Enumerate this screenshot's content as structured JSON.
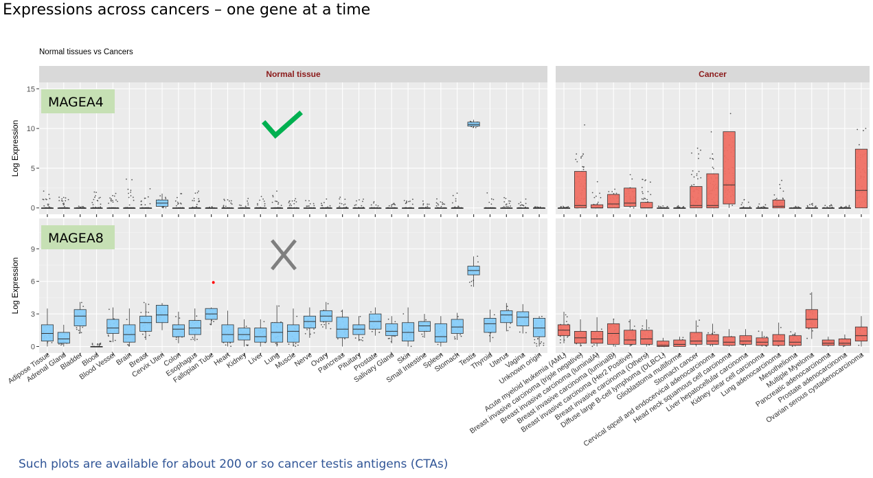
{
  "slide": {
    "title": "Expressions across cancers – one gene at a time",
    "footer": "Such plots are available for about 200 or so cancer testis antigens (CTAs)"
  },
  "colors": {
    "normal_fill": "#87CEFA",
    "cancer_fill": "#F07064",
    "strip_bg": "#D9D9D9",
    "strip_text": "#8B1A1A",
    "panel_bg": "#EBEBEB",
    "gene_label_bg": "#C6E0B4",
    "check": "#00B050",
    "cross": "#7F7F7F",
    "outlier_dot": "#FF0000"
  },
  "annotations": {
    "check_icon": "check-mark-icon",
    "cross_icon": "cross-mark-icon"
  },
  "chart_data": {
    "type": "box",
    "subtitle": "Normal tissues vs Cancers",
    "ylabel": "Log Expression",
    "facets": [
      "Normal tissue",
      "Cancer"
    ],
    "rows": [
      {
        "gene": "MAGEA4",
        "ylim": [
          -0.8,
          15.8
        ],
        "yticks": [
          0,
          5,
          10,
          15
        ],
        "verdict": "check"
      },
      {
        "gene": "MAGEA8",
        "ylim": [
          -0.6,
          11.8
        ],
        "yticks": [
          0,
          3,
          6,
          9
        ],
        "verdict": "cross"
      }
    ],
    "normal_categories": [
      "Adipose Tissue",
      "Adrenal Gland",
      "Bladder",
      "Blood",
      "Blood Vessel",
      "Brain",
      "Breast",
      "Cervix Uteri",
      "Colon",
      "Esophagus",
      "Fallopian Tube",
      "Heart",
      "Kidney",
      "Liver",
      "Lung",
      "Muscle",
      "Nerve",
      "Ovary",
      "Pancreas",
      "Pituitary",
      "Prostate",
      "Salivary Gland",
      "Skin",
      "Small Intestine",
      "Spleen",
      "Stomach",
      "Testis",
      "Thyroid",
      "Uterus",
      "Vagina",
      "Unknown origin"
    ],
    "cancer_categories": [
      "Acute myeloid leukemia (AML)",
      "Breast invasive carcinoma (triple negative)",
      "Breast invasive carcinoma (luminalA)",
      "Breast invasive carcinoma (luminalB)",
      "Breast invasive carcinoma (Her2 Positive)",
      "Breast invasive carcinoma (Others)",
      "Diffuse large B-cell lymphoma (DLBCL)",
      "Glioblastoma multiforme",
      "Stomach cancer",
      "Cervical sqcell and endocervical adenocarcinoma",
      "Head neck squamous cell carcinoma",
      "Liver hepatocellular carcinoma",
      "Kidney clear cell carcinoma",
      "Lung adenocarcinoma",
      "Mesothelioma",
      "Multiple Myeloma",
      "Pancreatic adenocarcinoma",
      "Prostate adenocarcinoma",
      "Ovarian serous cystadenocarcinoma"
    ],
    "MAGEA4": {
      "normal": [
        [
          0,
          0,
          0,
          0,
          0,
          2.5
        ],
        [
          0,
          0,
          0,
          0,
          0,
          2.2
        ],
        [
          0,
          0,
          0,
          0,
          0,
          0.5
        ],
        [
          0,
          0,
          0,
          0,
          0,
          2.5
        ],
        [
          0,
          0,
          0,
          0,
          0,
          2.3
        ],
        [
          0,
          0,
          0,
          0,
          0,
          4.5
        ],
        [
          0,
          0,
          0,
          0,
          0,
          2.5
        ],
        [
          0,
          0.2,
          0.6,
          1.0,
          1.8,
          2.0
        ],
        [
          0,
          0,
          0,
          0,
          0,
          2.0
        ],
        [
          0,
          0,
          0,
          0,
          0,
          2.5
        ],
        [
          0,
          0,
          0,
          0,
          0,
          0.3
        ],
        [
          0,
          0,
          0,
          0,
          0,
          2.0
        ],
        [
          0,
          0,
          0,
          0,
          0,
          1.5
        ],
        [
          0,
          0,
          0,
          0,
          0,
          1.5
        ],
        [
          0,
          0,
          0,
          0,
          0,
          2.5
        ],
        [
          0,
          0,
          0,
          0,
          0,
          2.0
        ],
        [
          0,
          0,
          0,
          0,
          0,
          1.0
        ],
        [
          0,
          0,
          0,
          0,
          0,
          1.5
        ],
        [
          0,
          0,
          0,
          0,
          0,
          2.0
        ],
        [
          0,
          0,
          0,
          0,
          0,
          1.5
        ],
        [
          0,
          0,
          0,
          0,
          0,
          1.5
        ],
        [
          0,
          0,
          0,
          0,
          0,
          1.0
        ],
        [
          0,
          0,
          0,
          0,
          0,
          2.0
        ],
        [
          0,
          0,
          0,
          0,
          0,
          1.5
        ],
        [
          0,
          0,
          0,
          0,
          0,
          1.2
        ],
        [
          0,
          0,
          0,
          0,
          0,
          2.0
        ],
        [
          10.1,
          10.3,
          10.5,
          10.8,
          11.1,
          11.4
        ],
        [
          0,
          0,
          0,
          0,
          0,
          2.0
        ],
        [
          0,
          0,
          0,
          0,
          0,
          1.5
        ],
        [
          0,
          0,
          0,
          0,
          0,
          1.2
        ],
        [
          0,
          0,
          0,
          0,
          0,
          0.2
        ]
      ],
      "cancer": [
        [
          0,
          0,
          0,
          0,
          0,
          0.3
        ],
        [
          0,
          0,
          0.3,
          4.6,
          4.6,
          11.5
        ],
        [
          0,
          0,
          0,
          0.4,
          0.4,
          4.0
        ],
        [
          0,
          0,
          0.5,
          1.7,
          1.7,
          3.5
        ],
        [
          0,
          0.2,
          0.6,
          2.5,
          2.5,
          4.3
        ],
        [
          0,
          0,
          0,
          0.7,
          0.7,
          4.0
        ],
        [
          0,
          0,
          0,
          0,
          0,
          0.3
        ],
        [
          0,
          0,
          0,
          0,
          0,
          0.3
        ],
        [
          0,
          0,
          0.3,
          2.7,
          2.7,
          8.0
        ],
        [
          0,
          0,
          0.3,
          4.3,
          4.3,
          10.5
        ],
        [
          0,
          0.5,
          2.9,
          9.6,
          9.6,
          14.0
        ],
        [
          0,
          0,
          0,
          0,
          0,
          2.0
        ],
        [
          0,
          0,
          0,
          0,
          0,
          0.5
        ],
        [
          0,
          0,
          0.2,
          1.0,
          1.0,
          4.0
        ],
        [
          0,
          0,
          0,
          0,
          0,
          0.3
        ],
        [
          0,
          0,
          0,
          0,
          0,
          0.8
        ],
        [
          0,
          0,
          0,
          0,
          0,
          0.5
        ],
        [
          0,
          0,
          0,
          0,
          0,
          0.5
        ],
        [
          0,
          0,
          2.2,
          7.4,
          7.4,
          12.0
        ]
      ]
    },
    "MAGEA8": {
      "normal": [
        [
          0,
          0.5,
          1.2,
          2.0,
          3.5,
          3.6
        ],
        [
          0,
          0.3,
          0.7,
          1.3,
          2.0,
          2.2
        ],
        [
          1.2,
          1.9,
          2.8,
          3.4,
          4.1,
          4.2
        ],
        [
          0,
          0,
          0,
          0,
          0,
          0.5
        ],
        [
          0.4,
          1.2,
          1.7,
          2.5,
          3.6,
          3.7
        ],
        [
          0,
          0.4,
          1.1,
          2.0,
          3.5,
          3.6
        ],
        [
          0.6,
          1.4,
          2.2,
          2.8,
          4.0,
          4.1
        ],
        [
          1.5,
          2.2,
          2.9,
          3.8,
          4.0,
          4.1
        ],
        [
          0.3,
          0.9,
          1.6,
          2.0,
          3.2,
          3.3
        ],
        [
          0.5,
          1.1,
          1.7,
          2.4,
          3.5,
          3.6
        ],
        [
          2.0,
          2.5,
          3.0,
          3.5,
          3.6,
          3.7
        ],
        [
          0,
          0.4,
          1.1,
          2.0,
          3.3,
          3.4
        ],
        [
          0,
          0.6,
          1.1,
          1.7,
          2.5,
          2.6
        ],
        [
          0,
          0.4,
          0.9,
          1.7,
          2.5,
          2.6
        ],
        [
          0,
          0.4,
          1.3,
          2.2,
          3.8,
          3.9
        ],
        [
          0,
          0.4,
          1.4,
          2.0,
          3.5,
          3.6
        ],
        [
          0.8,
          1.7,
          2.3,
          2.8,
          3.6,
          3.7
        ],
        [
          1.6,
          2.3,
          2.8,
          3.3,
          4.1,
          4.2
        ],
        [
          0,
          0.8,
          1.6,
          2.7,
          3.4,
          3.5
        ],
        [
          0.5,
          1.1,
          1.6,
          2.0,
          2.8,
          2.9
        ],
        [
          1.0,
          1.6,
          2.3,
          3.0,
          3.6,
          3.7
        ],
        [
          0.3,
          1.0,
          1.4,
          2.1,
          2.8,
          2.9
        ],
        [
          0,
          0.5,
          1.3,
          2.2,
          3.6,
          3.7
        ],
        [
          0.8,
          1.4,
          1.9,
          2.3,
          3.0,
          3.1
        ],
        [
          0,
          0.4,
          0.9,
          2.1,
          2.8,
          2.9
        ],
        [
          0.6,
          1.2,
          1.8,
          2.5,
          3.1,
          3.2
        ],
        [
          5.5,
          6.6,
          7.0,
          7.4,
          8.3,
          8.5
        ],
        [
          0.4,
          1.3,
          2.1,
          2.6,
          3.4,
          3.5
        ],
        [
          1.4,
          2.2,
          2.9,
          3.3,
          4.0,
          4.1
        ],
        [
          1.2,
          1.9,
          2.7,
          3.2,
          3.9,
          4.0
        ],
        [
          0,
          0.9,
          1.7,
          2.6,
          2.8,
          2.9
        ]
      ],
      "cancer": [
        [
          0.3,
          1.0,
          1.5,
          2.0,
          3.2,
          3.3
        ],
        [
          0,
          0.3,
          0.8,
          1.4,
          2.5,
          2.6
        ],
        [
          0,
          0.3,
          0.7,
          1.4,
          2.7,
          2.8
        ],
        [
          0,
          0.2,
          1.2,
          2.1,
          2.5,
          2.6
        ],
        [
          0,
          0.2,
          0.6,
          1.5,
          2.5,
          2.6
        ],
        [
          0,
          0.2,
          0.7,
          1.5,
          2.5,
          2.6
        ],
        [
          0,
          0,
          0.1,
          0.5,
          0.8,
          0.9
        ],
        [
          0,
          0,
          0.2,
          0.6,
          0.9,
          1.0
        ],
        [
          0,
          0.2,
          0.5,
          1.3,
          2.4,
          2.5
        ],
        [
          0,
          0.2,
          0.5,
          1.1,
          2.1,
          2.2
        ],
        [
          0,
          0.1,
          0.4,
          0.9,
          1.6,
          1.7
        ],
        [
          0,
          0.2,
          0.5,
          1.0,
          1.6,
          1.7
        ],
        [
          0,
          0.1,
          0.4,
          0.8,
          1.4,
          1.5
        ],
        [
          0,
          0.1,
          0.5,
          1.1,
          2.2,
          2.3
        ],
        [
          0,
          0.1,
          0.4,
          1.0,
          1.3,
          1.4
        ],
        [
          0.7,
          1.7,
          2.5,
          3.4,
          5.0,
          5.1
        ],
        [
          0,
          0.1,
          0.3,
          0.6,
          0.9,
          1.0
        ],
        [
          0,
          0.1,
          0.3,
          0.7,
          1.1,
          1.2
        ],
        [
          0,
          0.5,
          1.0,
          1.8,
          2.8,
          2.9
        ]
      ]
    },
    "outlier_highlight": {
      "gene": "MAGEA8",
      "category": "Fallopian Tube",
      "value": 5.9
    }
  }
}
